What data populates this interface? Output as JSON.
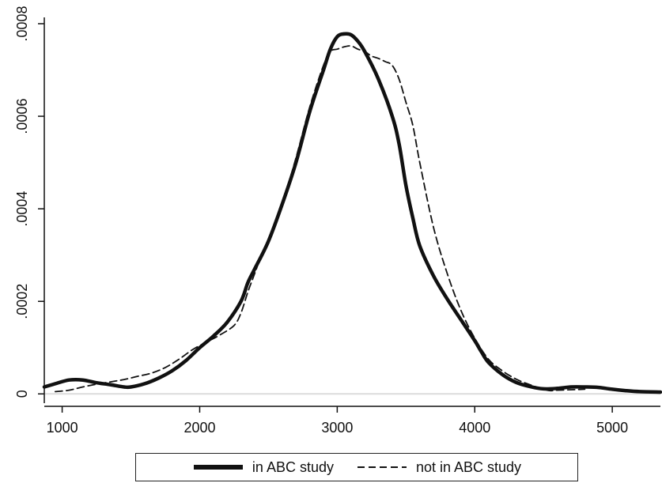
{
  "chart_data": {
    "type": "line",
    "title": "",
    "xlabel": "",
    "ylabel": "",
    "xlim": [
      870,
      5350
    ],
    "ylim": [
      -2e-05,
      0.0008
    ],
    "xticks": [
      1000,
      2000,
      3000,
      4000,
      5000
    ],
    "xtick_labels": [
      "1000",
      "2000",
      "3000",
      "4000",
      "5000"
    ],
    "yticks": [
      0,
      0.0002,
      0.0004,
      0.0006,
      0.0008
    ],
    "ytick_labels": [
      "0",
      ".0002",
      ".0004",
      ".0006",
      ".0008"
    ],
    "grid": false,
    "legend_position": "bottom",
    "series": [
      {
        "name": "in ABC study",
        "style": "solid",
        "color": "#111111",
        "x": [
          870,
          950,
          1050,
          1150,
          1250,
          1350,
          1450,
          1500,
          1600,
          1700,
          1800,
          1900,
          2000,
          2100,
          2200,
          2300,
          2350,
          2400,
          2500,
          2600,
          2700,
          2800,
          2900,
          2950,
          3000,
          3050,
          3100,
          3150,
          3200,
          3300,
          3400,
          3450,
          3500,
          3550,
          3600,
          3700,
          3800,
          3900,
          4000,
          4050,
          4100,
          4200,
          4300,
          4400,
          4500,
          4600,
          4700,
          4800,
          4900,
          5000,
          5100,
          5200,
          5350
        ],
        "y": [
          1.5e-05,
          2.2e-05,
          3e-05,
          3e-05,
          2.4e-05,
          2e-05,
          1.5e-05,
          1.5e-05,
          2.2e-05,
          3.4e-05,
          5e-05,
          7.2e-05,
          0.0001,
          0.000125,
          0.000155,
          0.0002,
          0.00024,
          0.00027,
          0.00033,
          0.00041,
          0.0005,
          0.00061,
          0.0007,
          0.000745,
          0.000772,
          0.000778,
          0.000776,
          0.000762,
          0.00074,
          0.00068,
          0.0006,
          0.00054,
          0.00045,
          0.00038,
          0.00032,
          0.000255,
          0.000205,
          0.00016,
          0.000115,
          9e-05,
          6.8e-05,
          4.2e-05,
          2.5e-05,
          1.6e-05,
          1.1e-05,
          1.2e-05,
          1.5e-05,
          1.5e-05,
          1.4e-05,
          1e-05,
          7e-06,
          5e-06,
          4e-06
        ]
      },
      {
        "name": "not in ABC study",
        "style": "dashed",
        "color": "#111111",
        "x": [
          950,
          1050,
          1150,
          1250,
          1350,
          1450,
          1550,
          1650,
          1750,
          1850,
          1950,
          2050,
          2150,
          2250,
          2300,
          2350,
          2400,
          2450,
          2500,
          2600,
          2700,
          2800,
          2900,
          2950,
          3000,
          3050,
          3100,
          3150,
          3200,
          3250,
          3300,
          3350,
          3400,
          3450,
          3500,
          3550,
          3600,
          3700,
          3800,
          3900,
          4000,
          4100,
          4200,
          4300,
          4400,
          4500,
          4550,
          4600,
          4700,
          4800
        ],
        "y": [
          5e-06,
          8e-06,
          1.5e-05,
          2.1e-05,
          2.6e-05,
          3.1e-05,
          3.8e-05,
          4.5e-05,
          5.7e-05,
          7.5e-05,
          9.6e-05,
          0.000112,
          0.000128,
          0.000148,
          0.000175,
          0.00022,
          0.00026,
          0.0003,
          0.00033,
          0.00041,
          0.00051,
          0.00062,
          0.00071,
          0.00074,
          0.000745,
          0.00075,
          0.000752,
          0.000745,
          0.00074,
          0.00073,
          0.000725,
          0.000718,
          0.00071,
          0.00068,
          0.00063,
          0.00058,
          0.0005,
          0.00036,
          0.00026,
          0.00018,
          0.00012,
          7.5e-05,
          5e-05,
          3.2e-05,
          2e-05,
          1e-05,
          7e-06,
          8e-06,
          9e-06,
          1e-05
        ]
      }
    ]
  },
  "legend": {
    "items": [
      {
        "label": "in ABC study",
        "style": "solid"
      },
      {
        "label": "not in ABC study",
        "style": "dashed"
      }
    ]
  }
}
